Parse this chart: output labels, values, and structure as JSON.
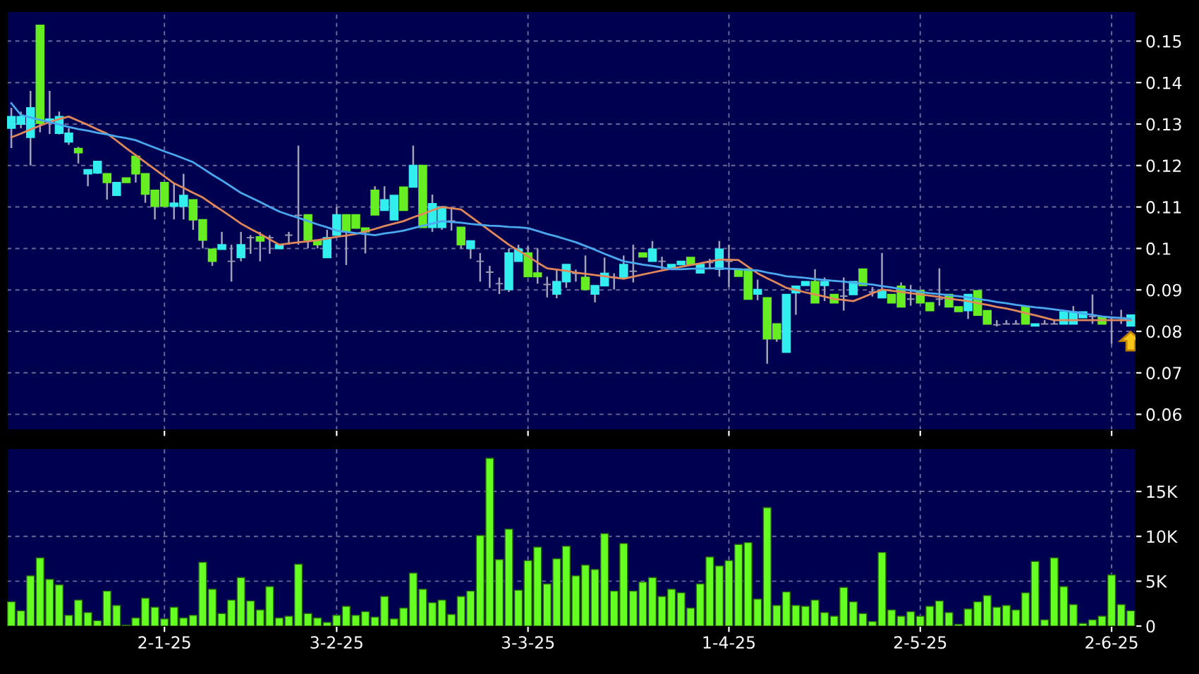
{
  "chart_data": [
    {
      "type": "candlestick",
      "categories": [
        null,
        null,
        null,
        null,
        null,
        null,
        null,
        null,
        null,
        null,
        null,
        null,
        null,
        null,
        null,
        null,
        null,
        null,
        null,
        null,
        null,
        null,
        null,
        null,
        null,
        null,
        null,
        null,
        null,
        null,
        null,
        null,
        null,
        null,
        null,
        null,
        null,
        null,
        null,
        null,
        null,
        null,
        null,
        null,
        null,
        null,
        null,
        null,
        null,
        null,
        null,
        null,
        null,
        null,
        null,
        null,
        null,
        null,
        null,
        null,
        null,
        null,
        null,
        null,
        null,
        null,
        null,
        null,
        null,
        null,
        null,
        null,
        null,
        null,
        null,
        null,
        null,
        null,
        null,
        null,
        null,
        null,
        null,
        null,
        null,
        null,
        null,
        null,
        null,
        null,
        null,
        null,
        null,
        null,
        null,
        null,
        null,
        null,
        null,
        null,
        null,
        null,
        null,
        null,
        null,
        null,
        null,
        null,
        null,
        null,
        null,
        null,
        null,
        null,
        null,
        null,
        null,
        null
      ],
      "ohlc": [
        [
          0.129,
          0.1339,
          0.1242,
          0.1318
        ],
        [
          0.13,
          0.133,
          0.129,
          0.1318
        ],
        [
          0.1268,
          0.138,
          0.12,
          0.1339
        ],
        [
          0.1538,
          0.1538,
          0.128,
          0.1302
        ],
        [
          0.1307,
          0.138,
          0.1276,
          0.1312
        ],
        [
          0.1278,
          0.133,
          0.1275,
          0.1318
        ],
        [
          0.1257,
          0.129,
          0.125,
          0.1278
        ],
        [
          0.1241,
          0.1245,
          0.1205,
          0.1231
        ],
        [
          0.118,
          0.119,
          0.115,
          0.119
        ],
        [
          0.1182,
          0.121,
          0.118,
          0.121
        ],
        [
          0.118,
          0.118,
          0.1118,
          0.1159
        ],
        [
          0.1128,
          0.1159,
          0.1128,
          0.1159
        ],
        [
          0.117,
          0.117,
          0.1159,
          0.1159
        ],
        [
          0.1222,
          0.1222,
          0.1159,
          0.118
        ],
        [
          0.118,
          0.118,
          0.111,
          0.1131
        ],
        [
          0.114,
          0.114,
          0.107,
          0.1102
        ],
        [
          0.1159,
          0.1159,
          0.1102,
          0.1102
        ],
        [
          0.1102,
          0.1157,
          0.107,
          0.1109
        ],
        [
          0.1102,
          0.118,
          0.107,
          0.1128
        ],
        [
          0.1117,
          0.1117,
          0.1045,
          0.1069
        ],
        [
          0.1069,
          0.1069,
          0.1,
          0.102
        ],
        [
          0.0998,
          0.0998,
          0.0958,
          0.0969
        ],
        [
          0.0998,
          0.104,
          0.0998,
          0.1009
        ],
        [
          0.0969,
          0.1009,
          0.092,
          0.0969
        ],
        [
          0.0978,
          0.104,
          0.0969,
          0.1009
        ],
        [
          0.1026,
          0.1032,
          0.0987,
          0.1026
        ],
        [
          0.1028,
          0.104,
          0.0969,
          0.1018
        ],
        [
          0.1026,
          0.1032,
          0.0987,
          0.1026
        ],
        [
          0.1,
          0.1009,
          0.1,
          0.1009
        ],
        [
          0.1032,
          0.104,
          0.1009,
          0.1032
        ],
        [
          0.108,
          0.1248,
          0.1009,
          0.108
        ],
        [
          0.1081,
          0.1081,
          0.1,
          0.102
        ],
        [
          0.102,
          0.102,
          0.1,
          0.1009
        ],
        [
          0.0978,
          0.1045,
          0.0978,
          0.1026
        ],
        [
          0.1032,
          0.11,
          0.1032,
          0.1081
        ],
        [
          0.1081,
          0.1081,
          0.096,
          0.104
        ],
        [
          0.1081,
          0.1081,
          0.1049,
          0.1049
        ],
        [
          0.1049,
          0.1049,
          0.0988,
          0.104
        ],
        [
          0.114,
          0.115,
          0.1081,
          0.1081
        ],
        [
          0.1092,
          0.115,
          0.1092,
          0.1117
        ],
        [
          0.1069,
          0.1128,
          0.1069,
          0.1128
        ],
        [
          0.1148,
          0.1148,
          0.1092,
          0.1092
        ],
        [
          0.1148,
          0.1248,
          0.1148,
          0.12
        ],
        [
          0.12,
          0.12,
          0.1051,
          0.1051
        ],
        [
          0.1051,
          0.113,
          0.104,
          0.1108
        ],
        [
          0.1051,
          0.11,
          0.1045,
          0.11
        ],
        [
          0.1066,
          0.11,
          0.1043,
          0.1066
        ],
        [
          0.1051,
          0.1051,
          0.1,
          0.1009
        ],
        [
          0.1,
          0.1018,
          0.0975,
          0.1018
        ],
        [
          0.0969,
          0.0989,
          0.092,
          0.0969
        ],
        [
          0.0943,
          0.0958,
          0.0905,
          0.0943
        ],
        [
          0.0915,
          0.093,
          0.089,
          0.0915
        ],
        [
          0.0901,
          0.1,
          0.0895,
          0.0989
        ],
        [
          0.0969,
          0.1009,
          0.0969,
          0.0998
        ],
        [
          0.0989,
          0.1005,
          0.0932,
          0.0932
        ],
        [
          0.0941,
          0.1,
          0.0915,
          0.0932
        ],
        [
          0.0913,
          0.0932,
          0.0882,
          0.0913
        ],
        [
          0.089,
          0.0949,
          0.088,
          0.092
        ],
        [
          0.092,
          0.0961,
          0.0905,
          0.0961
        ],
        [
          0.094,
          0.0949,
          0.092,
          0.094
        ],
        [
          0.093,
          0.0983,
          0.0901,
          0.0901
        ],
        [
          0.089,
          0.091,
          0.087,
          0.091
        ],
        [
          0.091,
          0.0978,
          0.091,
          0.094
        ],
        [
          0.093,
          0.094,
          0.0901,
          0.093
        ],
        [
          0.093,
          0.0983,
          0.093,
          0.0961
        ],
        [
          0.0945,
          0.1009,
          0.0918,
          0.0945
        ],
        [
          0.0989,
          0.0989,
          0.098,
          0.098
        ],
        [
          0.0969,
          0.1018,
          0.0969,
          0.0998
        ],
        [
          0.0969,
          0.098,
          0.095,
          0.0969
        ],
        [
          0.095,
          0.0961,
          0.095,
          0.0961
        ],
        [
          0.0961,
          0.0969,
          0.0961,
          0.0969
        ],
        [
          0.0978,
          0.0978,
          0.0961,
          0.0961
        ],
        [
          0.0941,
          0.0961,
          0.0941,
          0.0961
        ],
        [
          0.0966,
          0.0975,
          0.095,
          0.0966
        ],
        [
          0.095,
          0.1018,
          0.0932,
          0.0998
        ],
        [
          0.0969,
          0.1009,
          0.0907,
          0.0969
        ],
        [
          0.095,
          0.095,
          0.0933,
          0.0933
        ],
        [
          0.095,
          0.095,
          0.0878,
          0.0878
        ],
        [
          0.089,
          0.0925,
          0.0875,
          0.0901
        ],
        [
          0.0881,
          0.0881,
          0.0722,
          0.0782
        ],
        [
          0.0818,
          0.0818,
          0.0775,
          0.0782
        ],
        [
          0.075,
          0.0889,
          0.075,
          0.0889
        ],
        [
          0.0893,
          0.0909,
          0.084,
          0.0909
        ],
        [
          0.0911,
          0.092,
          0.0911,
          0.092
        ],
        [
          0.092,
          0.095,
          0.0869,
          0.0869
        ],
        [
          0.0911,
          0.093,
          0.0873,
          0.092
        ],
        [
          0.0889,
          0.0889,
          0.0869,
          0.0869
        ],
        [
          0.0885,
          0.093,
          0.085,
          0.0885
        ],
        [
          0.0889,
          0.092,
          0.0889,
          0.092
        ],
        [
          0.095,
          0.095,
          0.0911,
          0.0911
        ],
        [
          0.0895,
          0.0907,
          0.0884,
          0.0895
        ],
        [
          0.0881,
          0.0989,
          0.0881,
          0.09
        ],
        [
          0.0889,
          0.0889,
          0.0869,
          0.0869
        ],
        [
          0.0909,
          0.0918,
          0.0859,
          0.0859
        ],
        [
          0.0878,
          0.0912,
          0.0862,
          0.0878
        ],
        [
          0.0898,
          0.0898,
          0.0869,
          0.0869
        ],
        [
          0.0869,
          0.0869,
          0.085,
          0.085
        ],
        [
          0.0878,
          0.0952,
          0.0862,
          0.0878
        ],
        [
          0.0889,
          0.0889,
          0.0859,
          0.0859
        ],
        [
          0.0859,
          0.0859,
          0.0848,
          0.0848
        ],
        [
          0.085,
          0.0889,
          0.083,
          0.0889
        ],
        [
          0.0898,
          0.0898,
          0.0839,
          0.0839
        ],
        [
          0.085,
          0.085,
          0.0818,
          0.0818
        ],
        [
          0.0816,
          0.0827,
          0.0812,
          0.0816
        ],
        [
          0.0818,
          0.0827,
          0.0818,
          0.0818
        ],
        [
          0.0818,
          0.0827,
          0.0818,
          0.0818
        ],
        [
          0.0859,
          0.0859,
          0.0818,
          0.0818
        ],
        [
          0.0813,
          0.0818,
          0.0813,
          0.0818
        ],
        [
          0.0818,
          0.0827,
          0.0818,
          0.0818
        ],
        [
          0.0818,
          0.0827,
          0.0818,
          0.0818
        ],
        [
          0.0818,
          0.0847,
          0.0818,
          0.0847
        ],
        [
          0.0818,
          0.0861,
          0.0818,
          0.0847
        ],
        [
          0.0833,
          0.0847,
          0.0833,
          0.0847
        ],
        [
          0.0836,
          0.0889,
          0.0818,
          0.0836
        ],
        [
          0.0836,
          0.0836,
          0.0818,
          0.0818
        ],
        [
          0.0833,
          0.0833,
          0.077,
          0.0833
        ],
        [
          0.0833,
          0.0852,
          0.0818,
          0.0833
        ],
        [
          0.0813,
          0.0839,
          0.0813,
          0.0839
        ]
      ],
      "colors": [
        "#33eeee",
        "#33eeee",
        "#33eeee",
        "#66ee22",
        "#33eeee",
        "#33eeee",
        "#33eeee",
        "#66ee22",
        "#33eeee",
        "#33eeee",
        "#66ee22",
        "#33eeee",
        "#66ee22",
        "#66ee22",
        "#66ee22",
        "#66ee22",
        "#66ee22",
        "#33eeee",
        "#33eeee",
        "#66ee22",
        "#66ee22",
        "#66ee22",
        "#33eeee",
        "#9a9ab0",
        "#33eeee",
        "#9a9ab0",
        "#66ee22",
        "#9a9ab0",
        "#33eeee",
        "#9a9ab0",
        "#9a9ab0",
        "#66ee22",
        "#66ee22",
        "#33eeee",
        "#33eeee",
        "#66ee22",
        "#66ee22",
        "#66ee22",
        "#66ee22",
        "#33eeee",
        "#33eeee",
        "#66ee22",
        "#33eeee",
        "#66ee22",
        "#33eeee",
        "#33eeee",
        "#9a9ab0",
        "#66ee22",
        "#33eeee",
        "#9a9ab0",
        "#9a9ab0",
        "#9a9ab0",
        "#33eeee",
        "#33eeee",
        "#66ee22",
        "#66ee22",
        "#9a9ab0",
        "#33eeee",
        "#33eeee",
        "#9a9ab0",
        "#66ee22",
        "#33eeee",
        "#33eeee",
        "#9a9ab0",
        "#33eeee",
        "#9a9ab0",
        "#66ee22",
        "#33eeee",
        "#9a9ab0",
        "#33eeee",
        "#33eeee",
        "#66ee22",
        "#33eeee",
        "#9a9ab0",
        "#33eeee",
        "#9a9ab0",
        "#66ee22",
        "#66ee22",
        "#33eeee",
        "#66ee22",
        "#66ee22",
        "#33eeee",
        "#33eeee",
        "#33eeee",
        "#66ee22",
        "#33eeee",
        "#66ee22",
        "#9a9ab0",
        "#33eeee",
        "#66ee22",
        "#9a9ab0",
        "#33eeee",
        "#66ee22",
        "#66ee22",
        "#9a9ab0",
        "#66ee22",
        "#66ee22",
        "#9a9ab0",
        "#66ee22",
        "#66ee22",
        "#33eeee",
        "#66ee22",
        "#66ee22",
        "#9a9ab0",
        "#9a9ab0",
        "#9a9ab0",
        "#66ee22",
        "#33eeee",
        "#9a9ab0",
        "#9a9ab0",
        "#33eeee",
        "#33eeee",
        "#33eeee",
        "#9a9ab0",
        "#66ee22",
        "#9a9ab0",
        "#9a9ab0",
        "#33eeee"
      ],
      "series": [
        {
          "type": "line",
          "color": "#e0885a",
          "values": [
            0.1268,
            0.1277,
            0.1287,
            0.1296,
            0.1305,
            0.1312,
            0.1318,
            0.1308,
            0.1298,
            0.1287,
            0.1277,
            0.126,
            0.1242,
            0.1225,
            0.1208,
            0.1191,
            0.1174,
            0.1157,
            0.1146,
            0.1134,
            0.1123,
            0.1107,
            0.1092,
            0.1076,
            0.106,
            0.1047,
            0.1035,
            0.1022,
            0.1009,
            0.1012,
            0.1015,
            0.1017,
            0.102,
            0.1024,
            0.1028,
            0.1031,
            0.1035,
            0.1041,
            0.1047,
            0.1054,
            0.106,
            0.1066,
            0.1075,
            0.1083,
            0.1092,
            0.11,
            0.1097,
            0.1094,
            0.1077,
            0.106,
            0.1043,
            0.1026,
            0.1009,
            0.0995,
            0.0981,
            0.0966,
            0.0952,
            0.0949,
            0.0946,
            0.0942,
            0.0939,
            0.0936,
            0.0933,
            0.093,
            0.0927,
            0.0932,
            0.0937,
            0.0942,
            0.0947,
            0.0951,
            0.0956,
            0.096,
            0.0964,
            0.0969,
            0.0973,
            0.0973,
            0.0972,
            0.0956,
            0.094,
            0.0928,
            0.0917,
            0.0905,
            0.09,
            0.0894,
            0.0889,
            0.0884,
            0.0878,
            0.0876,
            0.0873,
            0.0882,
            0.0892,
            0.0901,
            0.0898,
            0.0895,
            0.0892,
            0.0889,
            0.0886,
            0.0883,
            0.0879,
            0.0876,
            0.0873,
            0.0868,
            0.0864,
            0.0859,
            0.0855,
            0.085,
            0.0844,
            0.0839,
            0.0833,
            0.0827,
            0.0827,
            0.0827,
            0.0827,
            0.0827,
            0.0827,
            0.0827,
            0.0827,
            0.0827
          ]
        },
        {
          "type": "line",
          "color": "#4aa8ee",
          "values": [
            0.135,
            0.1322,
            0.1316,
            0.131,
            0.1305,
            0.1299,
            0.1293,
            0.1288,
            0.1284,
            0.1279,
            0.1275,
            0.127,
            0.1266,
            0.1261,
            0.1252,
            0.1243,
            0.1234,
            0.1226,
            0.1217,
            0.1208,
            0.1193,
            0.1178,
            0.1164,
            0.1149,
            0.1134,
            0.1123,
            0.1112,
            0.11,
            0.1089,
            0.1081,
            0.1074,
            0.1066,
            0.1058,
            0.1051,
            0.1043,
            0.104,
            0.1037,
            0.1035,
            0.1032,
            0.1036,
            0.1039,
            0.1043,
            0.1049,
            0.1055,
            0.106,
            0.1066,
            0.1064,
            0.1062,
            0.1059,
            0.1057,
            0.1055,
            0.1054,
            0.1052,
            0.1051,
            0.1049,
            0.1042,
            0.1035,
            0.1029,
            0.1022,
            0.1015,
            0.1006,
            0.0997,
            0.0987,
            0.0978,
            0.0969,
            0.0965,
            0.0961,
            0.0958,
            0.0954,
            0.095,
            0.095,
            0.0951,
            0.0951,
            0.0952,
            0.0952,
            0.0951,
            0.095,
            0.0948,
            0.0947,
            0.0942,
            0.0938,
            0.0933,
            0.0931,
            0.0929,
            0.0926,
            0.0924,
            0.0922,
            0.092,
            0.0917,
            0.0915,
            0.0913,
            0.0909,
            0.0906,
            0.0902,
            0.0899,
            0.0895,
            0.0892,
            0.089,
            0.0887,
            0.0885,
            0.0882,
            0.0878,
            0.0875,
            0.0871,
            0.0868,
            0.0864,
            0.0861,
            0.0858,
            0.0856,
            0.0853,
            0.085,
            0.0847,
            0.0843,
            0.084,
            0.0836,
            0.0834,
            0.0832,
            0.083
          ]
        }
      ],
      "ylim": [
        0.0562,
        0.1572
      ],
      "yticks": [
        0.06,
        0.07,
        0.08,
        0.09,
        0.1,
        0.11,
        0.12,
        0.13,
        0.14,
        0.15
      ],
      "grid": true,
      "tick_labels": "y"
    },
    {
      "type": "bar",
      "categories": [
        null,
        null,
        null,
        null,
        null,
        null,
        null,
        null,
        null,
        null,
        null,
        null,
        null,
        null,
        null,
        null,
        "2-1-25",
        null,
        null,
        null,
        null,
        null,
        null,
        null,
        null,
        null,
        null,
        null,
        null,
        null,
        null,
        null,
        null,
        null,
        "3-2-25",
        null,
        null,
        null,
        null,
        null,
        null,
        null,
        null,
        null,
        null,
        null,
        null,
        null,
        null,
        null,
        null,
        null,
        null,
        null,
        "3-3-25",
        null,
        null,
        null,
        null,
        null,
        null,
        null,
        null,
        null,
        null,
        null,
        null,
        null,
        null,
        null,
        null,
        null,
        null,
        null,
        null,
        "1-4-25",
        null,
        null,
        null,
        null,
        null,
        null,
        null,
        null,
        null,
        null,
        null,
        null,
        null,
        null,
        null,
        null,
        null,
        null,
        null,
        "2-5-25",
        null,
        null,
        null,
        null,
        null,
        null,
        null,
        null,
        null,
        null,
        null,
        null,
        null,
        null,
        null,
        null,
        null,
        null,
        null,
        "2-6-25",
        null,
        null
      ],
      "values": [
        2.7,
        1.7,
        5.6,
        7.6,
        5.2,
        4.6,
        1.2,
        2.9,
        1.5,
        0.6,
        3.9,
        2.3,
        0.1,
        0.9,
        3.1,
        2.1,
        0.8,
        2.1,
        0.9,
        1.2,
        7.1,
        4.1,
        1.4,
        2.9,
        5.4,
        2.8,
        1.8,
        4.4,
        0.9,
        1.1,
        6.9,
        1.4,
        0.9,
        0.4,
        1.2,
        2.2,
        1.2,
        1.6,
        1.0,
        3.3,
        0.8,
        2.0,
        5.9,
        4.1,
        2.6,
        2.9,
        1.3,
        3.3,
        3.9,
        10.1,
        18.7,
        7.4,
        10.8,
        4.0,
        7.3,
        8.8,
        4.7,
        7.5,
        8.9,
        5.6,
        6.8,
        6.3,
        10.3,
        3.9,
        9.2,
        3.9,
        4.9,
        5.4,
        3.3,
        4.1,
        3.7,
        2.0,
        4.7,
        7.7,
        6.7,
        7.3,
        9.1,
        9.3,
        3.0,
        13.2,
        2.3,
        3.8,
        2.3,
        2.2,
        2.9,
        1.5,
        1.1,
        4.3,
        2.7,
        1.4,
        0.5,
        8.2,
        1.8,
        1.1,
        1.6,
        1.1,
        2.2,
        2.8,
        1.5,
        0.2,
        1.9,
        2.7,
        3.4,
        2.1,
        2.3,
        1.8,
        3.7,
        7.2,
        0.7,
        7.6,
        4.4,
        2.4,
        0.3,
        0.7,
        1.1,
        5.7,
        2.4,
        1.7
      ],
      "color": "#66ff22",
      "ylim": [
        0,
        19.8
      ],
      "yticks": [
        0,
        {
          "value": 5,
          "label": "5K"
        },
        {
          "value": 10,
          "label": "10K"
        },
        {
          "value": 15,
          "label": "15K"
        }
      ],
      "grid": true
    }
  ]
}
